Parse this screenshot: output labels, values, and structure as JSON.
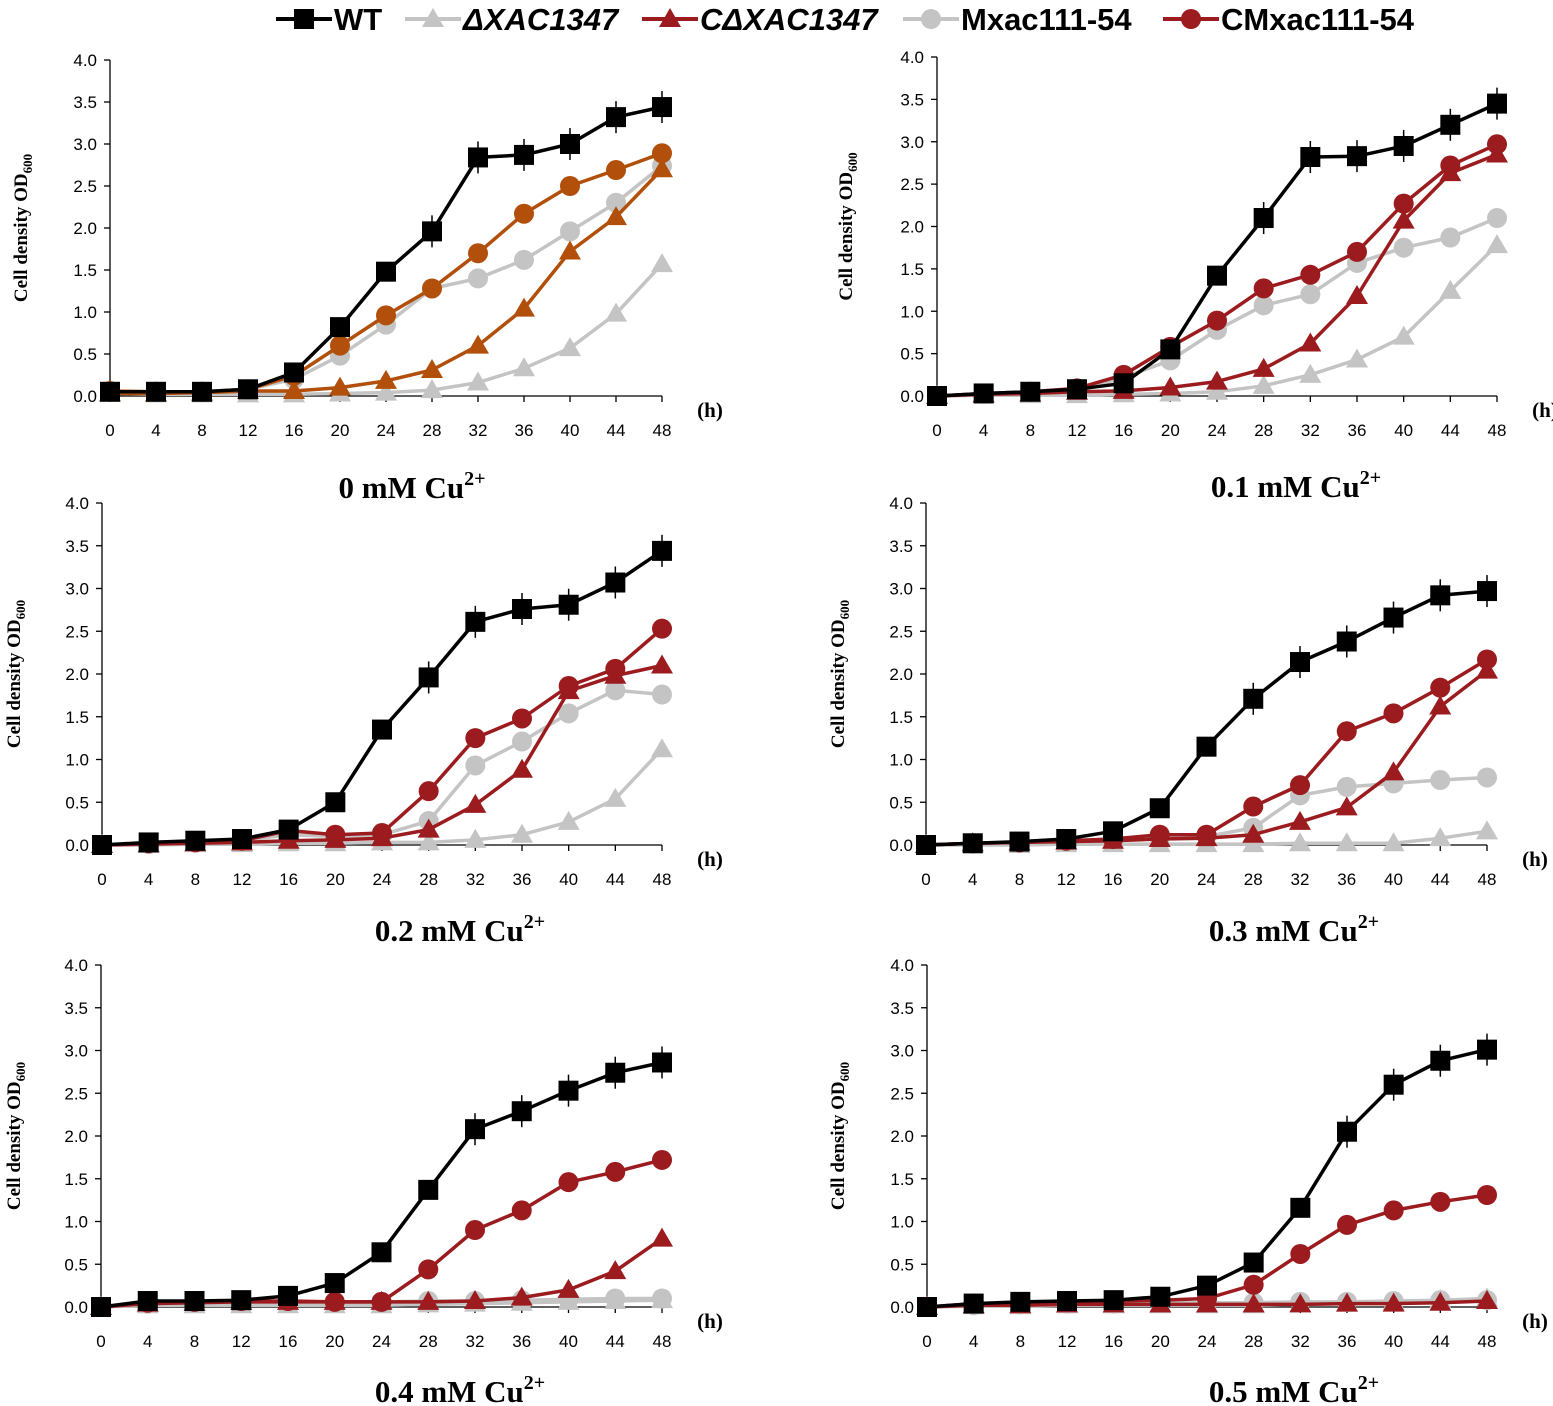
{
  "legend": [
    {
      "name": "WT",
      "label": "WT",
      "italic": false
    },
    {
      "name": "delta",
      "label": "ΔXAC1347",
      "italic": true
    },
    {
      "name": "comp",
      "label": "CΔXAC1347",
      "italic": true
    },
    {
      "name": "mx",
      "label": "Mxac111-54",
      "italic": false
    },
    {
      "name": "cmx",
      "label": "CMxac111-54",
      "italic": false
    }
  ],
  "colors": {
    "WT": "#000000",
    "delta": "#c4c4c4",
    "comp_panel1": "#b14f0b",
    "comp": "#9b1b1e",
    "mx": "#c4c4c4",
    "cmx_panel1": "#b14f0b",
    "cmx": "#9b1b1e"
  },
  "chart_data": [
    {
      "type": "line",
      "title": "0 mM Cu",
      "title_sup": "2+",
      "ylabel": "Cell density OD",
      "ylabel_sub": "600",
      "xunit": "(h)",
      "x": [
        0,
        4,
        8,
        12,
        16,
        20,
        24,
        28,
        32,
        36,
        40,
        44,
        48
      ],
      "yticks": [
        "0.0",
        "0.5",
        "1.0",
        "1.5",
        "2.0",
        "2.5",
        "3.0",
        "3.5",
        "4.0"
      ],
      "ylim": [
        0,
        4
      ],
      "xlim": [
        0,
        48
      ],
      "series": [
        {
          "name": "WT",
          "values": [
            0.05,
            0.05,
            0.05,
            0.08,
            0.28,
            0.82,
            1.48,
            1.96,
            2.84,
            2.87,
            3.0,
            3.32,
            3.44
          ]
        },
        {
          "name": "ΔXAC1347",
          "values": [
            0.03,
            0.02,
            0.02,
            0.02,
            0.02,
            0.03,
            0.04,
            0.07,
            0.16,
            0.33,
            0.57,
            0.98,
            1.57
          ]
        },
        {
          "name": "CΔXAC1347",
          "values": [
            0.03,
            0.03,
            0.04,
            0.06,
            0.06,
            0.1,
            0.18,
            0.31,
            0.6,
            1.04,
            1.72,
            2.13,
            2.7
          ]
        },
        {
          "name": "Mxac111-54",
          "values": [
            0.05,
            0.05,
            0.05,
            0.08,
            0.2,
            0.48,
            0.85,
            1.28,
            1.4,
            1.62,
            1.96,
            2.3,
            2.74
          ]
        },
        {
          "name": "CMxac111-54",
          "values": [
            0.06,
            0.05,
            0.05,
            0.08,
            0.24,
            0.6,
            0.96,
            1.28,
            1.7,
            2.17,
            2.5,
            2.69,
            2.89
          ]
        }
      ]
    },
    {
      "type": "line",
      "title": "0.1 mM Cu",
      "title_sup": "2+",
      "ylabel": "Cell density OD",
      "ylabel_sub": "600",
      "xunit": "(h)",
      "x": [
        0,
        4,
        8,
        12,
        16,
        20,
        24,
        28,
        32,
        36,
        40,
        44,
        48
      ],
      "yticks": [
        "0.0",
        "0.5",
        "1.0",
        "1.5",
        "2.0",
        "2.5",
        "3.0",
        "3.5",
        "4.0"
      ],
      "ylim": [
        0,
        4
      ],
      "xlim": [
        0,
        48
      ],
      "series": [
        {
          "name": "WT",
          "values": [
            0.0,
            0.03,
            0.05,
            0.08,
            0.15,
            0.55,
            1.42,
            2.1,
            2.82,
            2.83,
            2.95,
            3.2,
            3.45
          ]
        },
        {
          "name": "ΔXAC1347",
          "values": [
            0.0,
            0.01,
            0.01,
            0.01,
            0.02,
            0.03,
            0.05,
            0.12,
            0.25,
            0.43,
            0.7,
            1.24,
            1.78
          ]
        },
        {
          "name": "CΔXAC1347",
          "values": [
            0.0,
            0.02,
            0.03,
            0.05,
            0.06,
            0.1,
            0.17,
            0.32,
            0.62,
            1.18,
            2.07,
            2.63,
            2.85
          ]
        },
        {
          "name": "Mxac111-54",
          "values": [
            0.0,
            0.03,
            0.04,
            0.06,
            0.22,
            0.42,
            0.78,
            1.07,
            1.2,
            1.57,
            1.75,
            1.87,
            2.1
          ]
        },
        {
          "name": "CMxac111-54",
          "values": [
            0.0,
            0.03,
            0.05,
            0.09,
            0.25,
            0.58,
            0.89,
            1.27,
            1.43,
            1.7,
            2.27,
            2.72,
            2.97
          ]
        }
      ]
    },
    {
      "type": "line",
      "title": "0.2 mM Cu",
      "title_sup": "2+",
      "ylabel": "Cell density OD",
      "ylabel_sub": "600",
      "xunit": "(h)",
      "x": [
        0,
        4,
        8,
        12,
        16,
        20,
        24,
        28,
        32,
        36,
        40,
        44,
        48
      ],
      "yticks": [
        "0.0",
        "0.5",
        "1.0",
        "1.5",
        "2.0",
        "2.5",
        "3.0",
        "3.5",
        "4.0"
      ],
      "ylim": [
        0,
        4
      ],
      "xlim": [
        0,
        48
      ],
      "series": [
        {
          "name": "WT",
          "values": [
            0.0,
            0.03,
            0.05,
            0.07,
            0.18,
            0.5,
            1.35,
            1.96,
            2.61,
            2.76,
            2.81,
            3.07,
            3.44
          ]
        },
        {
          "name": "ΔXAC1347",
          "values": [
            0.0,
            0.0,
            0.01,
            0.01,
            0.02,
            0.02,
            0.03,
            0.03,
            0.06,
            0.12,
            0.27,
            0.54,
            1.12
          ]
        },
        {
          "name": "CΔXAC1347",
          "values": [
            0.0,
            0.01,
            0.02,
            0.03,
            0.05,
            0.06,
            0.08,
            0.18,
            0.47,
            0.88,
            1.8,
            1.98,
            2.1
          ]
        },
        {
          "name": "Mxac111-54",
          "values": [
            0.0,
            0.01,
            0.03,
            0.05,
            0.12,
            0.1,
            0.12,
            0.28,
            0.93,
            1.21,
            1.54,
            1.81,
            1.76
          ]
        },
        {
          "name": "CMxac111-54",
          "values": [
            0.0,
            0.02,
            0.03,
            0.05,
            0.17,
            0.12,
            0.14,
            0.63,
            1.25,
            1.48,
            1.86,
            2.06,
            2.53
          ]
        }
      ]
    },
    {
      "type": "line",
      "title": "0.3 mM Cu",
      "title_sup": "2+",
      "ylabel": "Cell density OD",
      "ylabel_sub": "600",
      "xunit": "(h)",
      "x": [
        0,
        4,
        8,
        12,
        16,
        20,
        24,
        28,
        32,
        36,
        40,
        44,
        48
      ],
      "yticks": [
        "0.0",
        "0.5",
        "1.0",
        "1.5",
        "2.0",
        "2.5",
        "3.0",
        "3.5",
        "4.0"
      ],
      "ylim": [
        0,
        4
      ],
      "xlim": [
        0,
        48
      ],
      "series": [
        {
          "name": "WT",
          "values": [
            0.0,
            0.02,
            0.04,
            0.07,
            0.16,
            0.43,
            1.15,
            1.71,
            2.14,
            2.38,
            2.66,
            2.92,
            2.97
          ]
        },
        {
          "name": "ΔXAC1347",
          "values": [
            0.0,
            0.0,
            0.0,
            0.01,
            0.01,
            0.01,
            0.01,
            0.01,
            0.02,
            0.02,
            0.02,
            0.08,
            0.16
          ]
        },
        {
          "name": "CΔXAC1347",
          "values": [
            0.0,
            0.02,
            0.03,
            0.04,
            0.05,
            0.07,
            0.08,
            0.12,
            0.27,
            0.44,
            0.85,
            1.62,
            2.04
          ]
        },
        {
          "name": "Mxac111-54",
          "values": [
            0.0,
            0.02,
            0.03,
            0.04,
            0.06,
            0.08,
            0.1,
            0.2,
            0.58,
            0.68,
            0.72,
            0.76,
            0.79
          ]
        },
        {
          "name": "CMxac111-54",
          "values": [
            0.0,
            0.02,
            0.03,
            0.05,
            0.07,
            0.12,
            0.12,
            0.45,
            0.7,
            1.33,
            1.54,
            1.84,
            2.17
          ]
        }
      ]
    },
    {
      "type": "line",
      "title": "0.4 mM Cu",
      "title_sup": "2+",
      "ylabel": "Cell density OD",
      "ylabel_sub": "600",
      "xunit": "(h)",
      "x": [
        0,
        4,
        8,
        12,
        16,
        20,
        24,
        28,
        32,
        36,
        40,
        44,
        48
      ],
      "yticks": [
        "0.0",
        "0.5",
        "1.0",
        "1.5",
        "2.0",
        "2.5",
        "3.0",
        "3.5",
        "4.0"
      ],
      "ylim": [
        0,
        4
      ],
      "xlim": [
        0,
        48
      ],
      "series": [
        {
          "name": "WT",
          "values": [
            0.0,
            0.07,
            0.07,
            0.08,
            0.13,
            0.28,
            0.64,
            1.37,
            2.08,
            2.29,
            2.53,
            2.74,
            2.86
          ]
        },
        {
          "name": "ΔXAC1347",
          "values": [
            0.0,
            0.02,
            0.02,
            0.02,
            0.02,
            0.02,
            0.02,
            0.03,
            0.04,
            0.05,
            0.06,
            0.07,
            0.08
          ]
        },
        {
          "name": "CΔXAC1347",
          "values": [
            0.0,
            0.04,
            0.05,
            0.06,
            0.06,
            0.06,
            0.06,
            0.06,
            0.07,
            0.11,
            0.2,
            0.42,
            0.8
          ]
        },
        {
          "name": "Mxac111-54",
          "values": [
            0.0,
            0.04,
            0.05,
            0.05,
            0.06,
            0.06,
            0.06,
            0.07,
            0.07,
            0.08,
            0.09,
            0.1,
            0.1
          ]
        },
        {
          "name": "CMxac111-54",
          "values": [
            0.0,
            0.05,
            0.06,
            0.07,
            0.07,
            0.06,
            0.06,
            0.44,
            0.9,
            1.13,
            1.46,
            1.58,
            1.72
          ]
        }
      ]
    },
    {
      "type": "line",
      "title": "0.5 mM Cu",
      "title_sup": "2+",
      "ylabel": "Cell density OD",
      "ylabel_sub": "600",
      "xunit": "(h)",
      "x": [
        0,
        4,
        8,
        12,
        16,
        20,
        24,
        28,
        32,
        36,
        40,
        44,
        48
      ],
      "yticks": [
        "0.0",
        "0.5",
        "1.0",
        "1.5",
        "2.0",
        "2.5",
        "3.0",
        "3.5",
        "4.0"
      ],
      "ylim": [
        0,
        4
      ],
      "xlim": [
        0,
        48
      ],
      "series": [
        {
          "name": "WT",
          "values": [
            0.0,
            0.04,
            0.06,
            0.07,
            0.08,
            0.12,
            0.25,
            0.52,
            1.16,
            2.05,
            2.6,
            2.88,
            3.01
          ]
        },
        {
          "name": "ΔXAC1347",
          "values": [
            0.0,
            0.01,
            0.01,
            0.02,
            0.02,
            0.02,
            0.02,
            0.02,
            0.03,
            0.04,
            0.06,
            0.08,
            0.1
          ]
        },
        {
          "name": "CΔXAC1347",
          "values": [
            0.0,
            0.02,
            0.02,
            0.03,
            0.03,
            0.03,
            0.03,
            0.03,
            0.03,
            0.04,
            0.04,
            0.05,
            0.07
          ]
        },
        {
          "name": "Mxac111-54",
          "values": [
            0.0,
            0.02,
            0.03,
            0.04,
            0.04,
            0.05,
            0.05,
            0.05,
            0.06,
            0.06,
            0.07,
            0.08,
            0.08
          ]
        },
        {
          "name": "CMxac111-54",
          "values": [
            0.0,
            0.04,
            0.05,
            0.06,
            0.07,
            0.08,
            0.1,
            0.26,
            0.62,
            0.96,
            1.13,
            1.23,
            1.31
          ]
        }
      ]
    }
  ]
}
